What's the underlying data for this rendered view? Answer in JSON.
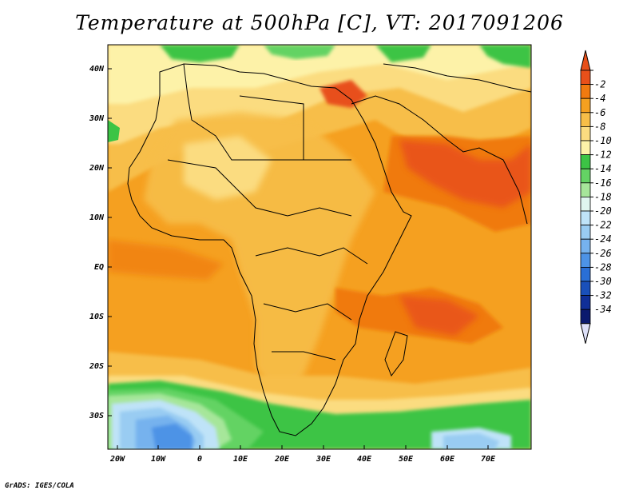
{
  "title": "Temperature at 500hPa [C], VT: 2017091206",
  "credit": "GrADS: IGES/COLA",
  "lat_labels": [
    "40N",
    "30N",
    "20N",
    "10N",
    "EQ",
    "10S",
    "20S",
    "30S"
  ],
  "lon_labels": [
    "20W",
    "10W",
    "0",
    "10E",
    "20E",
    "30E",
    "40E",
    "50E",
    "60E",
    "70E"
  ],
  "colorbar": {
    "labels": [
      "-2",
      "-4",
      "-6",
      "-8",
      "-10",
      "-12",
      "-14",
      "-16",
      "-18",
      "-20",
      "-22",
      "-24",
      "-26",
      "-28",
      "-30",
      "-32",
      "-34"
    ],
    "colors": [
      "#e8501a",
      "#f07a10",
      "#f5a020",
      "#f7be48",
      "#fbdc80",
      "#fdf2a8",
      "#3cc445",
      "#64d364",
      "#a6e69a",
      "#dff6ef",
      "#bfe3f8",
      "#99ccf2",
      "#76b2ee",
      "#4d93e6",
      "#2a6fd6",
      "#1a50ba",
      "#102f98",
      "#0b1a6e"
    ],
    "top_arrow_color": "#e8501a",
    "bottom_arrow_color": "#dde0f8"
  },
  "colors": {
    "ocean_base": "#f5a020",
    "land_base": "#f7be48"
  }
}
